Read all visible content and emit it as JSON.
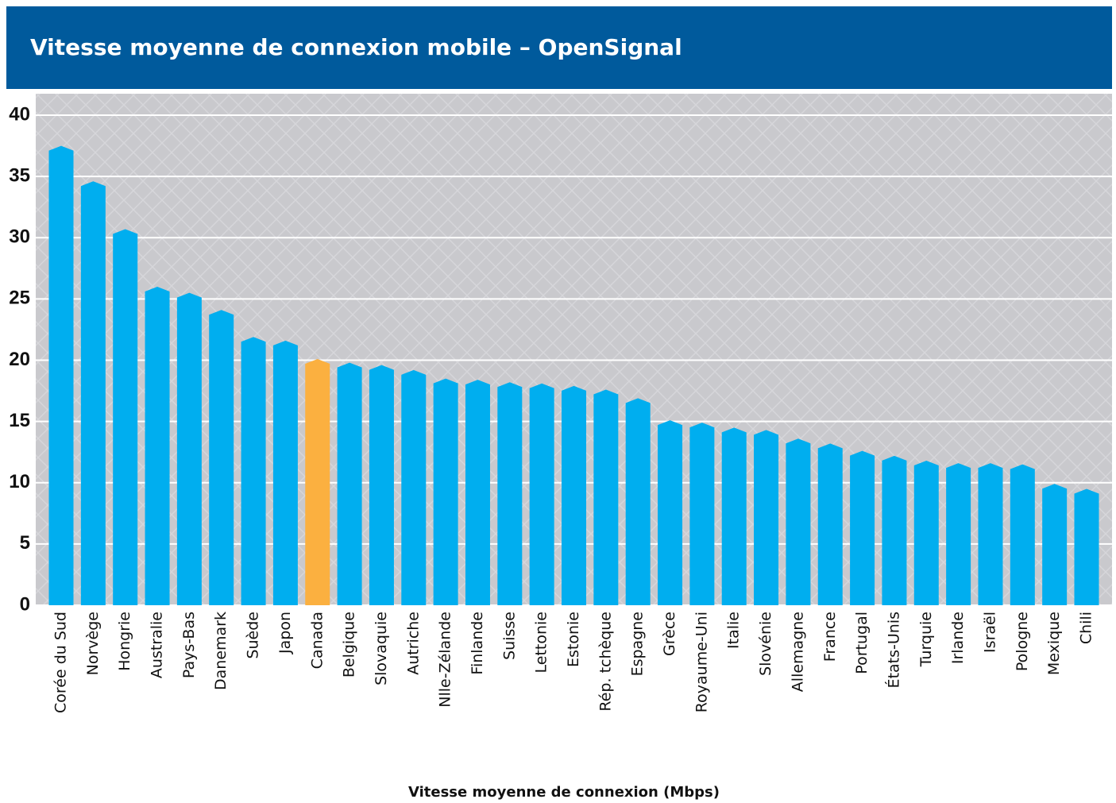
{
  "chart_data": {
    "type": "bar",
    "title": "Vitesse moyenne de connexion mobile – OpenSignal",
    "x_label": "Vitesse moyenne de connexion (Mbps)",
    "categories": [
      "Corée du Sud",
      "Norvège",
      "Hongrie",
      "Australie",
      "Pays-Bas",
      "Danemark",
      "Suède",
      "Japon",
      "Canada",
      "Belgique",
      "Slovaquie",
      "Autriche",
      "Nlle-Zélande",
      "Finlande",
      "Suisse",
      "Lettonie",
      "Estonie",
      "Rép. tchèque",
      "Espagne",
      "Grèce",
      "Royaume-Uni",
      "Italie",
      "Slovénie",
      "Allemagne",
      "France",
      "Portugal",
      "États-Unis",
      "Turquie",
      "Irlande",
      "Israël",
      "Pologne",
      "Mexique",
      "Chili"
    ],
    "values": [
      37.5,
      34.6,
      30.7,
      26.0,
      25.5,
      24.1,
      21.9,
      21.6,
      20.1,
      19.8,
      19.6,
      19.2,
      18.5,
      18.4,
      18.2,
      18.1,
      17.9,
      17.6,
      16.9,
      15.1,
      14.9,
      14.5,
      14.3,
      13.6,
      13.2,
      12.6,
      12.2,
      11.8,
      11.6,
      11.6,
      11.5,
      9.9,
      9.5
    ],
    "colors": [
      "#00aeef",
      "#00aeef",
      "#00aeef",
      "#00aeef",
      "#00aeef",
      "#00aeef",
      "#00aeef",
      "#00aeef",
      "#fbb040",
      "#00aeef",
      "#00aeef",
      "#00aeef",
      "#00aeef",
      "#00aeef",
      "#00aeef",
      "#00aeef",
      "#00aeef",
      "#00aeef",
      "#00aeef",
      "#00aeef",
      "#00aeef",
      "#00aeef",
      "#00aeef",
      "#00aeef",
      "#00aeef",
      "#00aeef",
      "#00aeef",
      "#00aeef",
      "#00aeef",
      "#00aeef",
      "#00aeef",
      "#00aeef",
      "#00aeef"
    ],
    "ylim": [
      0,
      40
    ],
    "yticks": [
      0,
      5,
      10,
      15,
      20,
      25,
      30,
      35,
      40
    ],
    "grid": true
  }
}
